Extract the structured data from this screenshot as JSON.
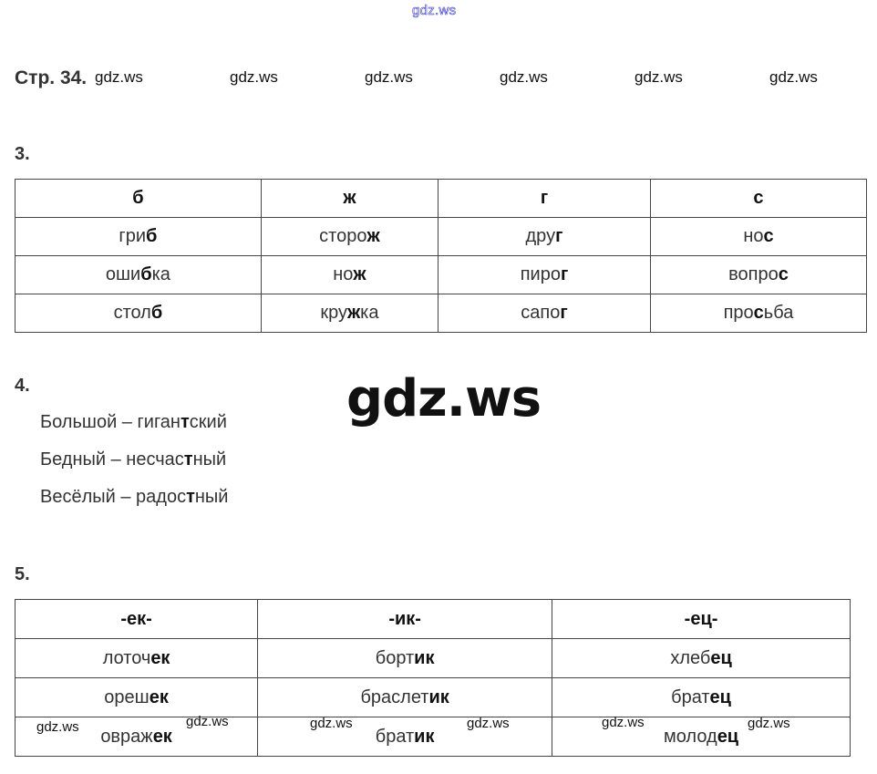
{
  "watermark": "gdz.ws",
  "header": {
    "title": "Стр. 34."
  },
  "task3": {
    "number": "3.",
    "headers": [
      "б",
      "ж",
      "г",
      "с"
    ],
    "rows": [
      [
        [
          "гри",
          "б",
          ""
        ],
        [
          "сторо",
          "ж",
          ""
        ],
        [
          "дру",
          "г",
          ""
        ],
        [
          "но",
          "с",
          ""
        ]
      ],
      [
        [
          "оши",
          "б",
          "ка"
        ],
        [
          "но",
          "ж",
          ""
        ],
        [
          "пиро",
          "г",
          ""
        ],
        [
          "вопро",
          "с",
          ""
        ]
      ],
      [
        [
          "стол",
          "б",
          ""
        ],
        [
          "кру",
          "ж",
          "ка"
        ],
        [
          "сапо",
          "г",
          ""
        ],
        [
          "про",
          "с",
          "ьба"
        ]
      ]
    ]
  },
  "task4": {
    "number": "4.",
    "lines": [
      [
        "Большой – гиган",
        "т",
        "ский"
      ],
      [
        "Бедный – несчас",
        "т",
        "ный"
      ],
      [
        "Весёлый – радос",
        "т",
        "ный"
      ]
    ]
  },
  "task5": {
    "number": "5.",
    "headers": [
      "-ек-",
      "-ик-",
      "-ец-"
    ],
    "rows": [
      [
        [
          "лоточ",
          "ек",
          ""
        ],
        [
          "борт",
          "ик",
          ""
        ],
        [
          "хлеб",
          "ец",
          ""
        ]
      ],
      [
        [
          "ореш",
          "ек",
          ""
        ],
        [
          "браслет",
          "ик",
          ""
        ],
        [
          "брат",
          "ец",
          ""
        ]
      ],
      [
        [
          "овраж",
          "ек",
          ""
        ],
        [
          "брат",
          "ик",
          ""
        ],
        [
          "молод",
          "ец",
          ""
        ]
      ]
    ]
  }
}
